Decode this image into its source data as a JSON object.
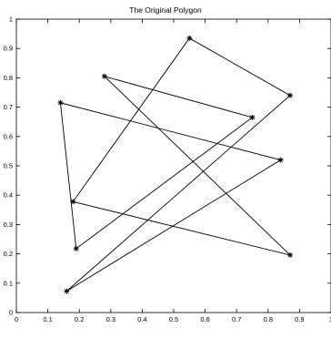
{
  "chart_data": {
    "type": "line",
    "title": "The Original Polygon",
    "xlabel": "",
    "ylabel": "",
    "xlim": [
      0,
      1
    ],
    "ylim": [
      0,
      1
    ],
    "xticks": [
      0,
      0.1,
      0.2,
      0.3,
      0.4,
      0.5,
      0.6,
      0.7,
      0.8,
      0.9,
      1
    ],
    "yticks": [
      0,
      0.1,
      0.2,
      0.3,
      0.4,
      0.5,
      0.6,
      0.7,
      0.8,
      0.9,
      1
    ],
    "xtick_labels": [
      "0",
      "0.1",
      "0.2",
      "0.3",
      "0.4",
      "0.5",
      "0.6",
      "0.7",
      "0.8",
      "0.9",
      "1"
    ],
    "ytick_labels": [
      "0",
      "0.1",
      "0.2",
      "0.3",
      "0.4",
      "0.5",
      "0.6",
      "0.7",
      "0.8",
      "0.9",
      "1"
    ],
    "grid": false,
    "line_color": "#000000",
    "marker": "asterisk",
    "series": [
      {
        "x": [
          0.55,
          0.87,
          0.16,
          0.84,
          0.14,
          0.19,
          0.75,
          0.28,
          0.87,
          0.18,
          0.55
        ],
        "y": [
          0.935,
          0.74,
          0.073,
          0.52,
          0.715,
          0.218,
          0.665,
          0.805,
          0.196,
          0.378,
          0.935
        ]
      }
    ]
  }
}
